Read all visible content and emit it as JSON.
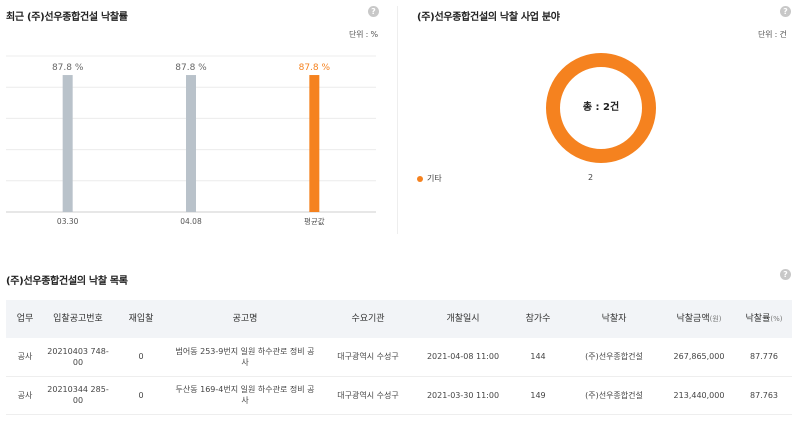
{
  "award_rate_panel": {
    "title": "최근 (주)선우종합건설 낙찰률",
    "unit": "단위 : %",
    "help": "?"
  },
  "field_panel": {
    "title": "(주)선우종합건설의 낙찰 사업 분야",
    "unit": "단위 : 건",
    "help": "?",
    "total_label": "총 : 2건",
    "legend": [
      {
        "name": "기타",
        "value": "2",
        "color": "#f5821f"
      }
    ]
  },
  "chart_data": [
    {
      "type": "bar",
      "categories": [
        "03.30",
        "04.08",
        "평균값"
      ],
      "values": [
        87.8,
        87.8,
        87.8
      ],
      "value_labels": [
        "87.8 %",
        "87.8 %",
        "87.8 %"
      ],
      "colors": [
        "#b9c2ca",
        "#b9c2ca",
        "#f5821f"
      ],
      "label_colors": [
        "#666666",
        "#666666",
        "#f5821f"
      ],
      "ylim": [
        0,
        100
      ],
      "grid": true
    },
    {
      "type": "pie",
      "categories": [
        "기타"
      ],
      "values": [
        2
      ],
      "colors": [
        "#f5821f"
      ]
    }
  ],
  "award_list": {
    "title": "(주)선우종합건설의 낙찰 목록",
    "help": "?",
    "columns": [
      {
        "label": "업무",
        "sub": ""
      },
      {
        "label": "입찰공고번호",
        "sub": ""
      },
      {
        "label": "재입찰",
        "sub": ""
      },
      {
        "label": "공고명",
        "sub": ""
      },
      {
        "label": "수요기관",
        "sub": ""
      },
      {
        "label": "개찰일시",
        "sub": ""
      },
      {
        "label": "참가수",
        "sub": ""
      },
      {
        "label": "낙찰자",
        "sub": ""
      },
      {
        "label": "낙찰금액",
        "sub": "(원)"
      },
      {
        "label": "낙찰률",
        "sub": "(%)"
      }
    ],
    "rows": [
      [
        "공사",
        "20210403 748-00",
        "0",
        "범어동 253-9번지 일원 하수관로 정비 공사",
        "대구광역시 수성구",
        "2021-04-08 11:00",
        "144",
        "(주)선우종합건설",
        "267,865,000",
        "87.776"
      ],
      [
        "공사",
        "20210344 285-00",
        "0",
        "두산동 169-4번지 일원 하수관로 정비 공사",
        "대구광역시 수성구",
        "2021-03-30 11:00",
        "149",
        "(주)선우종합건설",
        "213,440,000",
        "87.763"
      ]
    ]
  }
}
